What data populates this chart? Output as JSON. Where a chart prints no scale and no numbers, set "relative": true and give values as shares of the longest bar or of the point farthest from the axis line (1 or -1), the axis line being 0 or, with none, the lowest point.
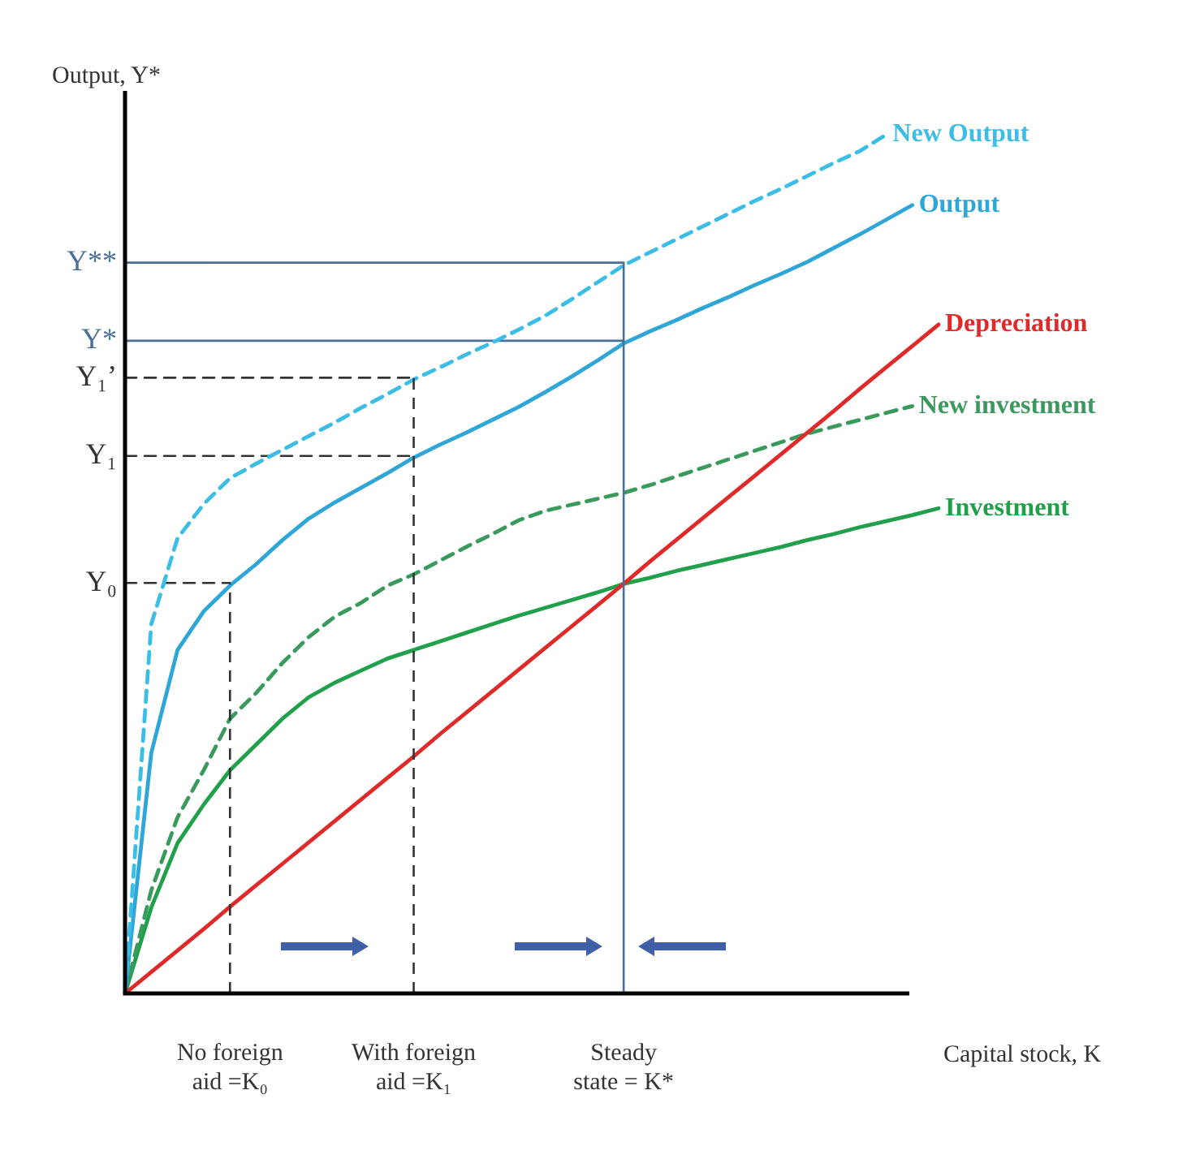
{
  "chart_data": {
    "type": "line",
    "relative": true,
    "xlabel": "Capital stock, K",
    "ylabel": "Output, Y*",
    "categories": [
      null,
      null,
      null,
      null,
      "No foreign\naid =K₀",
      null,
      null,
      null,
      null,
      null,
      null,
      "With foreign\naid =K₁",
      null,
      null,
      null,
      null,
      null,
      null,
      null,
      "Steady\nstate = K*",
      null,
      null,
      null,
      null,
      null,
      null,
      null,
      null,
      null,
      null,
      null,
      null
    ],
    "ref_lines": [
      {
        "axis": "x",
        "value": "No foreign\naid =K₀",
        "color": "#333333",
        "line_style": "dashed"
      },
      {
        "axis": "x",
        "value": "With foreign\naid =K₁",
        "color": "#333333",
        "line_style": "dashed"
      },
      {
        "axis": "x",
        "value": "Steady\nstate = K*",
        "color": "#4a6f9a",
        "line_style": "solid"
      }
    ],
    "series": [
      {
        "name": "New Output",
        "color": "#3cbde6",
        "line_style": "dashed",
        "values": [
          0,
          0.43,
          0.53,
          0.57,
          0.6,
          0.617,
          0.633,
          0.649,
          0.665,
          0.682,
          0.698,
          0.715,
          0.729,
          0.744,
          0.758,
          0.773,
          0.789,
          0.808,
          0.828,
          0.848,
          0.863,
          0.878,
          0.893,
          0.908,
          0.923,
          0.937,
          0.952,
          0.967,
          0.981,
          1,
          null,
          null
        ]
      },
      {
        "name": "Output",
        "color": "#2ea6d8",
        "line_style": "solid",
        "values": [
          0,
          0.28,
          0.4,
          0.445,
          0.475,
          0.5,
          0.528,
          0.553,
          0.572,
          0.589,
          0.606,
          0.624,
          0.639,
          0.653,
          0.668,
          0.683,
          0.7,
          0.718,
          0.737,
          0.757,
          0.771,
          0.784,
          0.798,
          0.811,
          0.825,
          0.838,
          0.852,
          0.868,
          0.884,
          0.901,
          0.918,
          null
        ]
      },
      {
        "name": "Depreciation",
        "color": "#e02a2a",
        "line_style": "solid",
        "values": [
          0,
          0.025,
          0.05,
          0.075,
          0.101,
          0.126,
          0.151,
          0.176,
          0.201,
          0.226,
          0.251,
          0.276,
          0.302,
          0.327,
          0.352,
          0.377,
          0.402,
          0.427,
          0.452,
          0.477,
          0.503,
          0.528,
          0.553,
          0.578,
          0.603,
          0.628,
          0.653,
          0.678,
          0.704,
          0.729,
          0.754,
          0.779
        ]
      },
      {
        "name": "New investment",
        "color": "#3a9a5e",
        "line_style": "dashed",
        "values": [
          0,
          0.12,
          0.205,
          0.26,
          0.32,
          0.35,
          0.385,
          0.415,
          0.439,
          0.455,
          0.475,
          0.488,
          0.504,
          0.52,
          0.535,
          0.551,
          0.562,
          0.569,
          0.576,
          0.583,
          0.592,
          0.602,
          0.612,
          0.622,
          0.632,
          0.642,
          0.652,
          0.66,
          0.668,
          0.676,
          0.684,
          null
        ]
      },
      {
        "name": "Investment",
        "color": "#20a04a",
        "line_style": "solid",
        "values": [
          0,
          0.1,
          0.175,
          0.22,
          0.26,
          0.29,
          0.32,
          0.345,
          0.362,
          0.376,
          0.39,
          0.4,
          0.41,
          0.42,
          0.43,
          0.44,
          0.449,
          0.458,
          0.467,
          0.477,
          0.484,
          0.492,
          0.499,
          0.506,
          0.513,
          0.52,
          0.528,
          0.535,
          0.543,
          0.55,
          0.557,
          0.565
        ]
      },
      {
        "name": "Y**",
        "color": "#4a6f9a",
        "line_style": "solid",
        "values": [
          0.851,
          0.851,
          0.851,
          0.851,
          0.851,
          0.851,
          0.851,
          0.851,
          0.851,
          0.851,
          0.851,
          0.851,
          0.851,
          0.851,
          0.851,
          0.851,
          0.851,
          0.851,
          0.851,
          0.851,
          null,
          null,
          null,
          null,
          null,
          null,
          null,
          null,
          null,
          null,
          null,
          null
        ]
      },
      {
        "name": "Y*",
        "color": "#4a6f9a",
        "line_style": "solid",
        "values": [
          0.76,
          0.76,
          0.76,
          0.76,
          0.76,
          0.76,
          0.76,
          0.76,
          0.76,
          0.76,
          0.76,
          0.76,
          0.76,
          0.76,
          0.76,
          0.76,
          0.76,
          0.76,
          0.76,
          0.76,
          null,
          null,
          null,
          null,
          null,
          null,
          null,
          null,
          null,
          null,
          null,
          null
        ]
      },
      {
        "name": "Y₁’",
        "color": "#333333",
        "line_style": "dashed",
        "values": [
          0.717,
          0.717,
          0.717,
          0.717,
          0.717,
          0.717,
          0.717,
          0.717,
          0.717,
          0.717,
          0.717,
          0.717,
          null,
          null,
          null,
          null,
          null,
          null,
          null,
          null,
          null,
          null,
          null,
          null,
          null,
          null,
          null,
          null,
          null,
          null,
          null,
          null
        ]
      },
      {
        "name": "Y₁",
        "color": "#333333",
        "line_style": "dashed",
        "values": [
          0.626,
          0.626,
          0.626,
          0.626,
          0.626,
          0.626,
          0.626,
          0.626,
          0.626,
          0.626,
          0.626,
          0.626,
          null,
          null,
          null,
          null,
          null,
          null,
          null,
          null,
          null,
          null,
          null,
          null,
          null,
          null,
          null,
          null,
          null,
          null,
          null,
          null
        ]
      },
      {
        "name": "Y₀",
        "color": "#333333",
        "line_style": "dashed",
        "values": [
          0.478,
          0.478,
          0.478,
          0.478,
          0.478,
          null,
          null,
          null,
          null,
          null,
          null,
          null,
          null,
          null,
          null,
          null,
          null,
          null,
          null,
          null,
          null,
          null,
          null,
          null,
          null,
          null,
          null,
          null,
          null,
          null,
          null,
          null
        ]
      }
    ]
  }
}
